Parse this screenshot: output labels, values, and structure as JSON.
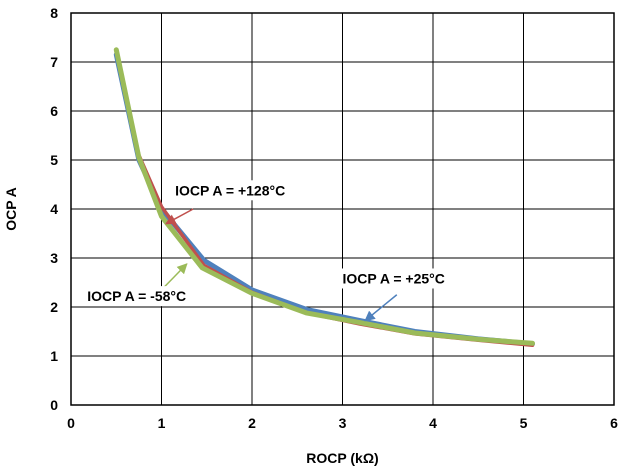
{
  "chart_data": {
    "type": "line",
    "title": "",
    "xlabel": "ROCP (kΩ)",
    "ylabel": "OCP A",
    "xlim": [
      0,
      6
    ],
    "ylim": [
      0,
      8
    ],
    "x_ticks": [
      0,
      1,
      2,
      3,
      4,
      5,
      6
    ],
    "y_ticks": [
      0,
      1,
      2,
      3,
      4,
      5,
      6,
      7,
      8
    ],
    "grid": true,
    "legend": "none",
    "series": [
      {
        "name": "IOCP A = +25°C",
        "color": "#4f81bd",
        "x": [
          0.5,
          0.75,
          1.0,
          1.47,
          2.0,
          2.6,
          3.2,
          3.8,
          4.5,
          5.1
        ],
        "y": [
          7.15,
          5.0,
          4.0,
          2.95,
          2.35,
          1.95,
          1.72,
          1.5,
          1.35,
          1.25
        ]
      },
      {
        "name": "IOCP A = +128°C",
        "color": "#c0504d",
        "x": [
          0.5,
          0.75,
          1.0,
          1.47,
          2.0,
          2.6,
          3.2,
          3.8,
          4.5,
          5.1
        ],
        "y": [
          7.2,
          5.1,
          4.05,
          2.85,
          2.3,
          1.88,
          1.65,
          1.45,
          1.32,
          1.22
        ]
      },
      {
        "name": "IOCP A = -58°C",
        "color": "#9bbb59",
        "x": [
          0.5,
          0.75,
          1.0,
          1.45,
          2.0,
          2.6,
          3.2,
          3.8,
          4.5,
          5.1
        ],
        "y": [
          7.25,
          5.05,
          3.85,
          2.8,
          2.28,
          1.88,
          1.68,
          1.47,
          1.34,
          1.26
        ]
      }
    ],
    "annotations": [
      {
        "text": "IOCP A = +128°C",
        "color": "#c0504d",
        "text_x": 1.15,
        "text_y": 4.28,
        "arrow_from_x": 1.35,
        "arrow_from_y": 4.0,
        "arrow_to_x": 1.05,
        "arrow_to_y": 3.7
      },
      {
        "text": "IOCP A = +25°C",
        "color": "#4f81bd",
        "text_x": 3.0,
        "text_y": 2.48,
        "arrow_from_x": 3.6,
        "arrow_from_y": 2.25,
        "arrow_to_x": 3.25,
        "arrow_to_y": 1.72
      },
      {
        "text": "IOCP A = -58°C",
        "color": "#9bbb59",
        "text_x": 0.18,
        "text_y": 2.12,
        "arrow_from_x": 1.0,
        "arrow_from_y": 2.35,
        "arrow_to_x": 1.28,
        "arrow_to_y": 2.88
      }
    ]
  }
}
